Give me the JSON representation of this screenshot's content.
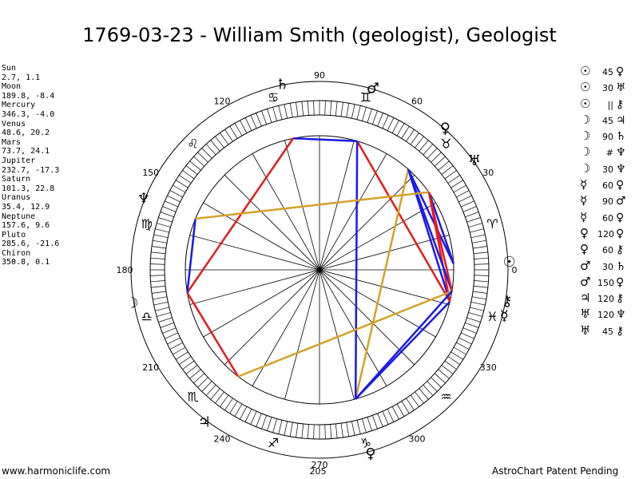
{
  "title": "1769-03-23 - William Smith (geologist), Geologist",
  "planets": [
    {
      "name": "Sun",
      "coords": "2.7, 1.1"
    },
    {
      "name": "Moon",
      "coords": "189.8, -8.4"
    },
    {
      "name": "Mercury",
      "coords": "346.3, -4.0"
    },
    {
      "name": "Venus",
      "coords": "48.6, 20.2"
    },
    {
      "name": "Mars",
      "coords": "73.7, 24.1"
    },
    {
      "name": "Jupiter",
      "coords": "232.7, -17.3"
    },
    {
      "name": "Saturn",
      "coords": "101.3, 22.8"
    },
    {
      "name": "Uranus",
      "coords": "35.4, 12.9"
    },
    {
      "name": "Neptune",
      "coords": "157.6, 9.6"
    },
    {
      "name": "Pluto",
      "coords": "285.6, -21.6"
    },
    {
      "name": "Chiron",
      "coords": "350.8, 0.1"
    }
  ],
  "aspects": [
    {
      "p1": "☉",
      "deg": "45",
      "p2": "♀"
    },
    {
      "p1": "☉",
      "deg": "30",
      "p2": "♅"
    },
    {
      "p1": "☉",
      "deg": "||",
      "p2": "⚷"
    },
    {
      "p1": "☽",
      "deg": "45",
      "p2": "♃"
    },
    {
      "p1": "☽",
      "deg": "90",
      "p2": "♄"
    },
    {
      "p1": "☽",
      "deg": "#",
      "p2": "♆"
    },
    {
      "p1": "☽",
      "deg": "30",
      "p2": "♆"
    },
    {
      "p1": "☿",
      "deg": "60",
      "p2": "♀"
    },
    {
      "p1": "☿",
      "deg": "90",
      "p2": "♂"
    },
    {
      "p1": "☿",
      "deg": "60",
      "p2": "♀"
    },
    {
      "p1": "♀",
      "deg": "120",
      "p2": "♀"
    },
    {
      "p1": "♀",
      "deg": "60",
      "p2": "⚷"
    },
    {
      "p1": "♂",
      "deg": "30",
      "p2": "♄"
    },
    {
      "p1": "♂",
      "deg": "150",
      "p2": "♀"
    },
    {
      "p1": "♃",
      "deg": "120",
      "p2": "⚷"
    },
    {
      "p1": "♅",
      "deg": "120",
      "p2": "♆"
    },
    {
      "p1": "♅",
      "deg": "45",
      "p2": "⚷"
    }
  ],
  "wheel_labels": [
    {
      "deg": 0,
      "text": "0"
    },
    {
      "deg": 30,
      "text": "30"
    },
    {
      "deg": 60,
      "text": "60"
    },
    {
      "deg": 90,
      "text": "90"
    },
    {
      "deg": 120,
      "text": "120"
    },
    {
      "deg": 150,
      "text": "150"
    },
    {
      "deg": 180,
      "text": "180"
    },
    {
      "deg": 210,
      "text": "210"
    },
    {
      "deg": 240,
      "text": "240"
    },
    {
      "deg": 270,
      "text": "270"
    },
    {
      "deg": 300,
      "text": "300"
    },
    {
      "deg": 330,
      "text": "330"
    }
  ],
  "extra_label": "205",
  "planet_glyphs": [
    {
      "name": "sun",
      "glyph": "☉",
      "deg": 2.7
    },
    {
      "name": "moon",
      "glyph": "☽",
      "deg": 189.8
    },
    {
      "name": "mercury",
      "glyph": "☿",
      "deg": 346.3
    },
    {
      "name": "venus",
      "glyph": "♀",
      "deg": 48.6
    },
    {
      "name": "mars",
      "glyph": "♂",
      "deg": 73.7
    },
    {
      "name": "jupiter",
      "glyph": "♃",
      "deg": 232.7
    },
    {
      "name": "saturn",
      "glyph": "♄",
      "deg": 101.3
    },
    {
      "name": "uranus",
      "glyph": "♅",
      "deg": 35.4
    },
    {
      "name": "neptune",
      "glyph": "♆",
      "deg": 157.6
    },
    {
      "name": "pluto",
      "glyph": "♀",
      "deg": 285.6
    },
    {
      "name": "chiron",
      "glyph": "⚷",
      "deg": 350.8
    }
  ],
  "sign_glyphs": [
    {
      "glyph": "♈",
      "deg": 15
    },
    {
      "glyph": "♉",
      "deg": 45
    },
    {
      "glyph": "♊",
      "deg": 75
    },
    {
      "glyph": "♋",
      "deg": 105
    },
    {
      "glyph": "♌",
      "deg": 135
    },
    {
      "glyph": "♍",
      "deg": 165
    },
    {
      "glyph": "♎",
      "deg": 195
    },
    {
      "glyph": "♏",
      "deg": 225
    },
    {
      "glyph": "♐",
      "deg": 255
    },
    {
      "glyph": "♑",
      "deg": 285
    },
    {
      "glyph": "♒",
      "deg": 315
    },
    {
      "glyph": "♓",
      "deg": 345
    }
  ],
  "aspect_lines": [
    {
      "a": 2.7,
      "b": 48.6,
      "color": "#1a1ae6"
    },
    {
      "a": 2.7,
      "b": 35.4,
      "color": "#1a1ae6"
    },
    {
      "a": 189.8,
      "b": 232.7,
      "color": "#e61a1a"
    },
    {
      "a": 189.8,
      "b": 101.3,
      "color": "#e61a1a"
    },
    {
      "a": 189.8,
      "b": 157.6,
      "color": "#1a1ae6"
    },
    {
      "a": 346.3,
      "b": 285.6,
      "color": "#1a1ae6"
    },
    {
      "a": 346.3,
      "b": 48.6,
      "color": "#1a1ae6"
    },
    {
      "a": 346.3,
      "b": 73.7,
      "color": "#e61a1a"
    },
    {
      "a": 346.3,
      "b": 35.4,
      "color": "#e61a1a"
    },
    {
      "a": 48.6,
      "b": 285.6,
      "color": "#d4a12a"
    },
    {
      "a": 48.6,
      "b": 350.8,
      "color": "#1a1ae6"
    },
    {
      "a": 73.7,
      "b": 101.3,
      "color": "#1a1ae6"
    },
    {
      "a": 73.7,
      "b": 285.6,
      "color": "#1a1ae6"
    },
    {
      "a": 232.7,
      "b": 350.8,
      "color": "#d4a12a"
    },
    {
      "a": 35.4,
      "b": 157.6,
      "color": "#d4a12a"
    },
    {
      "a": 35.4,
      "b": 350.8,
      "color": "#e61a1a"
    },
    {
      "a": 285.6,
      "b": 350.8,
      "color": "#1a1ae6"
    }
  ],
  "footer": {
    "left": "www.harmoniclife.com",
    "right": "AstroChart Patent Pending"
  }
}
